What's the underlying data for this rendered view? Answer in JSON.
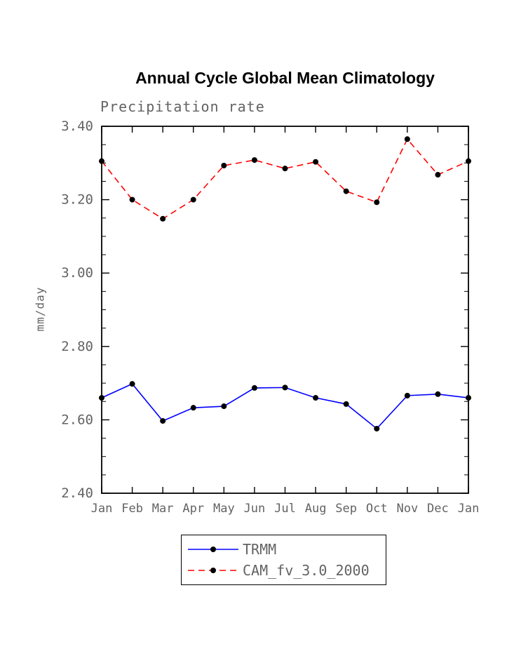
{
  "chart_data": {
    "type": "line",
    "title": "Annual Cycle Global Mean Climatology",
    "subtitle": "Precipitation rate",
    "ylabel": "mm/day",
    "xlabel": "",
    "categories": [
      "Jan",
      "Feb",
      "Mar",
      "Apr",
      "May",
      "Jun",
      "Jul",
      "Aug",
      "Sep",
      "Oct",
      "Nov",
      "Dec",
      "Jan"
    ],
    "ylim": [
      2.4,
      3.4
    ],
    "ytick_interval": 0.2,
    "ytick_minor_interval": 0.05,
    "ytick_labels": [
      "2.40",
      "2.60",
      "2.80",
      "3.00",
      "3.20",
      "3.40"
    ],
    "grid": false,
    "legend_position": "bottom",
    "axis_text_color": "#636363",
    "frame_color": "#000000",
    "marker_color": "#000000",
    "series": [
      {
        "name": "TRMM",
        "color": "#0000ff",
        "style": "solid",
        "marker": "black-dot",
        "values": [
          2.66,
          2.698,
          2.597,
          2.633,
          2.637,
          2.687,
          2.688,
          2.66,
          2.643,
          2.576,
          2.666,
          2.67,
          2.66
        ]
      },
      {
        "name": "CAM_fv_3.0_2000",
        "color": "#ff0000",
        "style": "dashed",
        "marker": "black-dot",
        "values": [
          3.305,
          3.2,
          3.148,
          3.2,
          3.293,
          3.308,
          3.285,
          3.303,
          3.223,
          3.193,
          3.365,
          3.268,
          3.305
        ]
      }
    ]
  }
}
